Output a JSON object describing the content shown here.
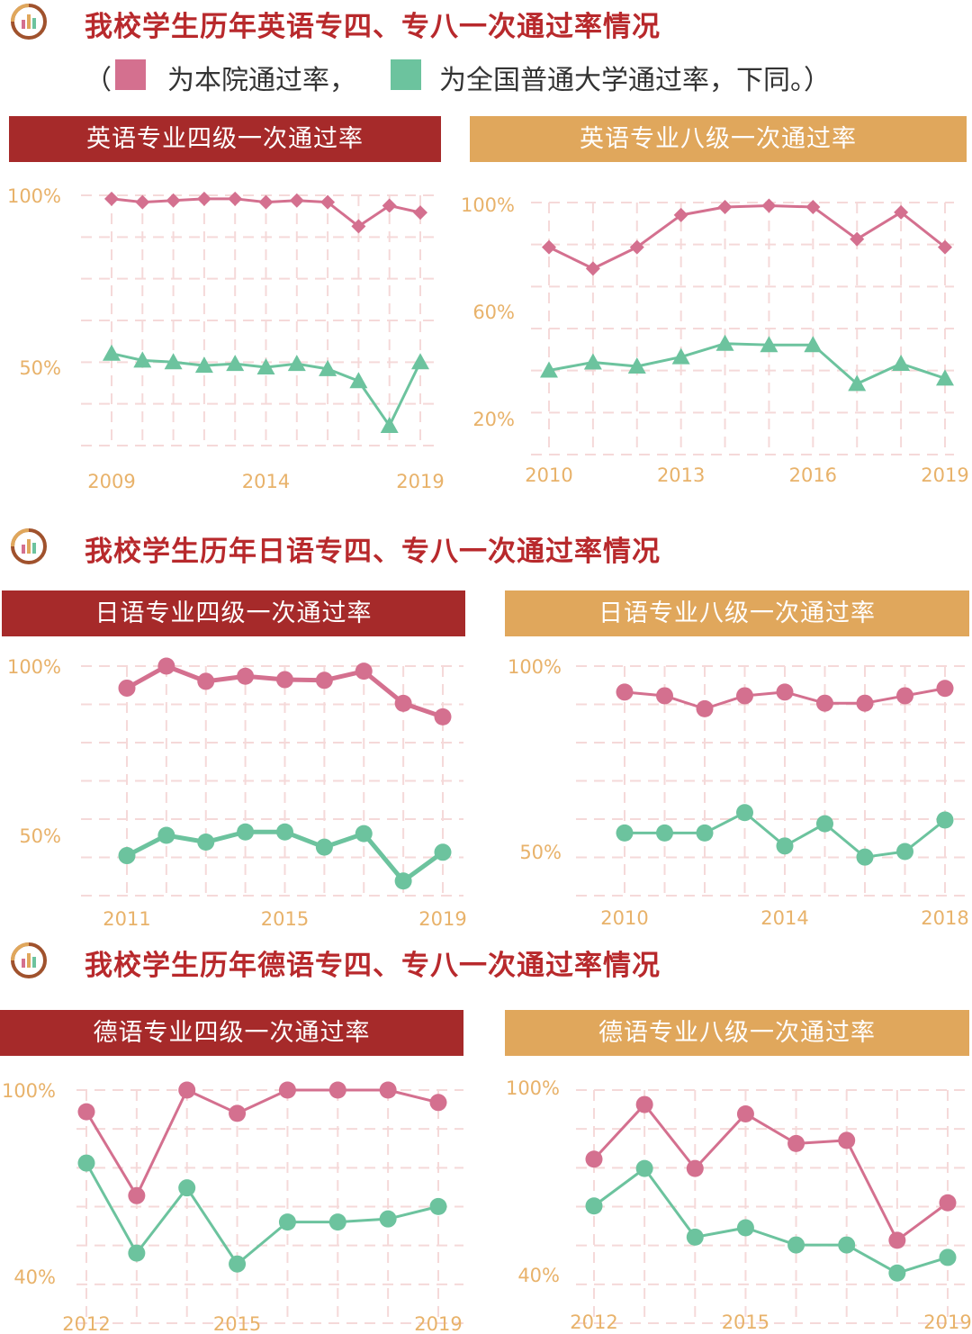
{
  "sections": [
    {
      "title": "我校学生历年英语专四、专八一次通过率情况"
    },
    {
      "title": "我校学生历年日语专四、专八一次通过率情况"
    },
    {
      "title": "我校学生历年德语专四、专八一次通过率情况"
    }
  ],
  "legend": {
    "open": "（",
    "school_label": "为本院通过率，",
    "national_label": "为全国普通大学通过率，下同。）",
    "school_color": "#d4708f",
    "national_color": "#6cc39e"
  },
  "colors": {
    "title": "#b8292c",
    "banner_red": "#a62a2a",
    "banner_gold": "#e0a75c",
    "axis_text": "#e8b26a",
    "grid": "#f5d9d9"
  },
  "chart_data": [
    {
      "type": "line",
      "title": "英语专业四级一次通过率",
      "marker": "diamond/triangle",
      "x": [
        2009,
        2010,
        2011,
        2012,
        2013,
        2014,
        2015,
        2016,
        2017,
        2018,
        2019
      ],
      "x_ticks": [
        "2009",
        "2014",
        "2019"
      ],
      "y_ticks": [
        "100%",
        "50%"
      ],
      "ylim": [
        30,
        100
      ],
      "series": [
        {
          "values": [
            99,
            98,
            98.5,
            99,
            99,
            98,
            98.5,
            98,
            91,
            97,
            95
          ]
        },
        {
          "values": [
            54,
            52,
            51.5,
            50.5,
            51,
            50,
            51,
            49.5,
            46,
            33,
            51.5
          ]
        }
      ]
    },
    {
      "type": "line",
      "title": "英语专业八级一次通过率",
      "marker": "diamond/triangle",
      "x": [
        2010,
        2011,
        2012,
        2013,
        2014,
        2015,
        2016,
        2017,
        2018,
        2019
      ],
      "x_ticks": [
        "2010",
        "2013",
        "2016",
        "2019"
      ],
      "y_ticks": [
        "100%",
        "60%",
        "20%"
      ],
      "ylim": [
        20,
        100
      ],
      "series": [
        {
          "values": [
            84,
            76,
            84,
            96,
            99,
            99.5,
            99,
            87,
            97,
            84
          ]
        },
        {
          "values": [
            38,
            41,
            39.5,
            43,
            48,
            47.5,
            47.5,
            33,
            40.5,
            35
          ]
        }
      ]
    },
    {
      "type": "line",
      "title": "日语专业四级一次通过率",
      "marker": "circle",
      "x": [
        2011,
        2012,
        2013,
        2014,
        2015,
        2016,
        2017,
        2018,
        2019
      ],
      "x_ticks": [
        "2011",
        "2015",
        "2019"
      ],
      "y_ticks": [
        "100%",
        "50%"
      ],
      "ylim": [
        35,
        100
      ],
      "series": [
        {
          "values": [
            93.5,
            100,
            95.5,
            97,
            96,
            95.8,
            98.5,
            89,
            85
          ]
        },
        {
          "values": [
            44,
            50,
            48,
            51,
            51,
            46.5,
            50.5,
            36.5,
            45
          ]
        }
      ]
    },
    {
      "type": "line",
      "title": "日语专业八级一次通过率",
      "marker": "circle",
      "x": [
        2010,
        2011,
        2012,
        2013,
        2014,
        2015,
        2016,
        2017,
        2018
      ],
      "x_ticks": [
        "2010",
        "2014",
        "2018"
      ],
      "y_ticks": [
        "100%",
        "50%"
      ],
      "ylim": [
        40,
        100
      ],
      "series": [
        {
          "values": [
            93,
            92,
            88.5,
            92,
            93,
            90,
            90,
            92,
            94
          ]
        },
        {
          "values": [
            55,
            55,
            55,
            60.5,
            51.5,
            57.5,
            48.5,
            50,
            58.5
          ]
        }
      ]
    },
    {
      "type": "line",
      "title": "德语专业四级一次通过率",
      "marker": "circle",
      "x": [
        2012,
        2013,
        2014,
        2015,
        2016,
        2017,
        2018,
        2019
      ],
      "x_ticks": [
        "2012",
        "2015",
        "2019"
      ],
      "y_ticks": [
        "100%",
        "40%"
      ],
      "ylim": [
        40,
        100
      ],
      "series": [
        {
          "values": [
            93,
            66,
            100,
            92.5,
            100,
            100,
            100,
            96
          ]
        },
        {
          "values": [
            76.5,
            47.5,
            68.5,
            44,
            57.5,
            57.5,
            58.5,
            62.5
          ]
        }
      ]
    },
    {
      "type": "line",
      "title": "德语专业八级一次通过率",
      "marker": "circle",
      "x": [
        2012,
        2013,
        2014,
        2015,
        2016,
        2017,
        2018,
        2019
      ],
      "x_ticks": [
        "2012",
        "2015",
        "2019"
      ],
      "y_ticks": [
        "100%",
        "40%"
      ],
      "ylim": [
        40,
        100
      ],
      "series": [
        {
          "values": [
            77,
            94.5,
            74,
            91.5,
            82,
            83,
            51,
            63
          ]
        },
        {
          "values": [
            62,
            74,
            52,
            55,
            49.5,
            49.5,
            40.5,
            45.5
          ]
        }
      ]
    }
  ]
}
